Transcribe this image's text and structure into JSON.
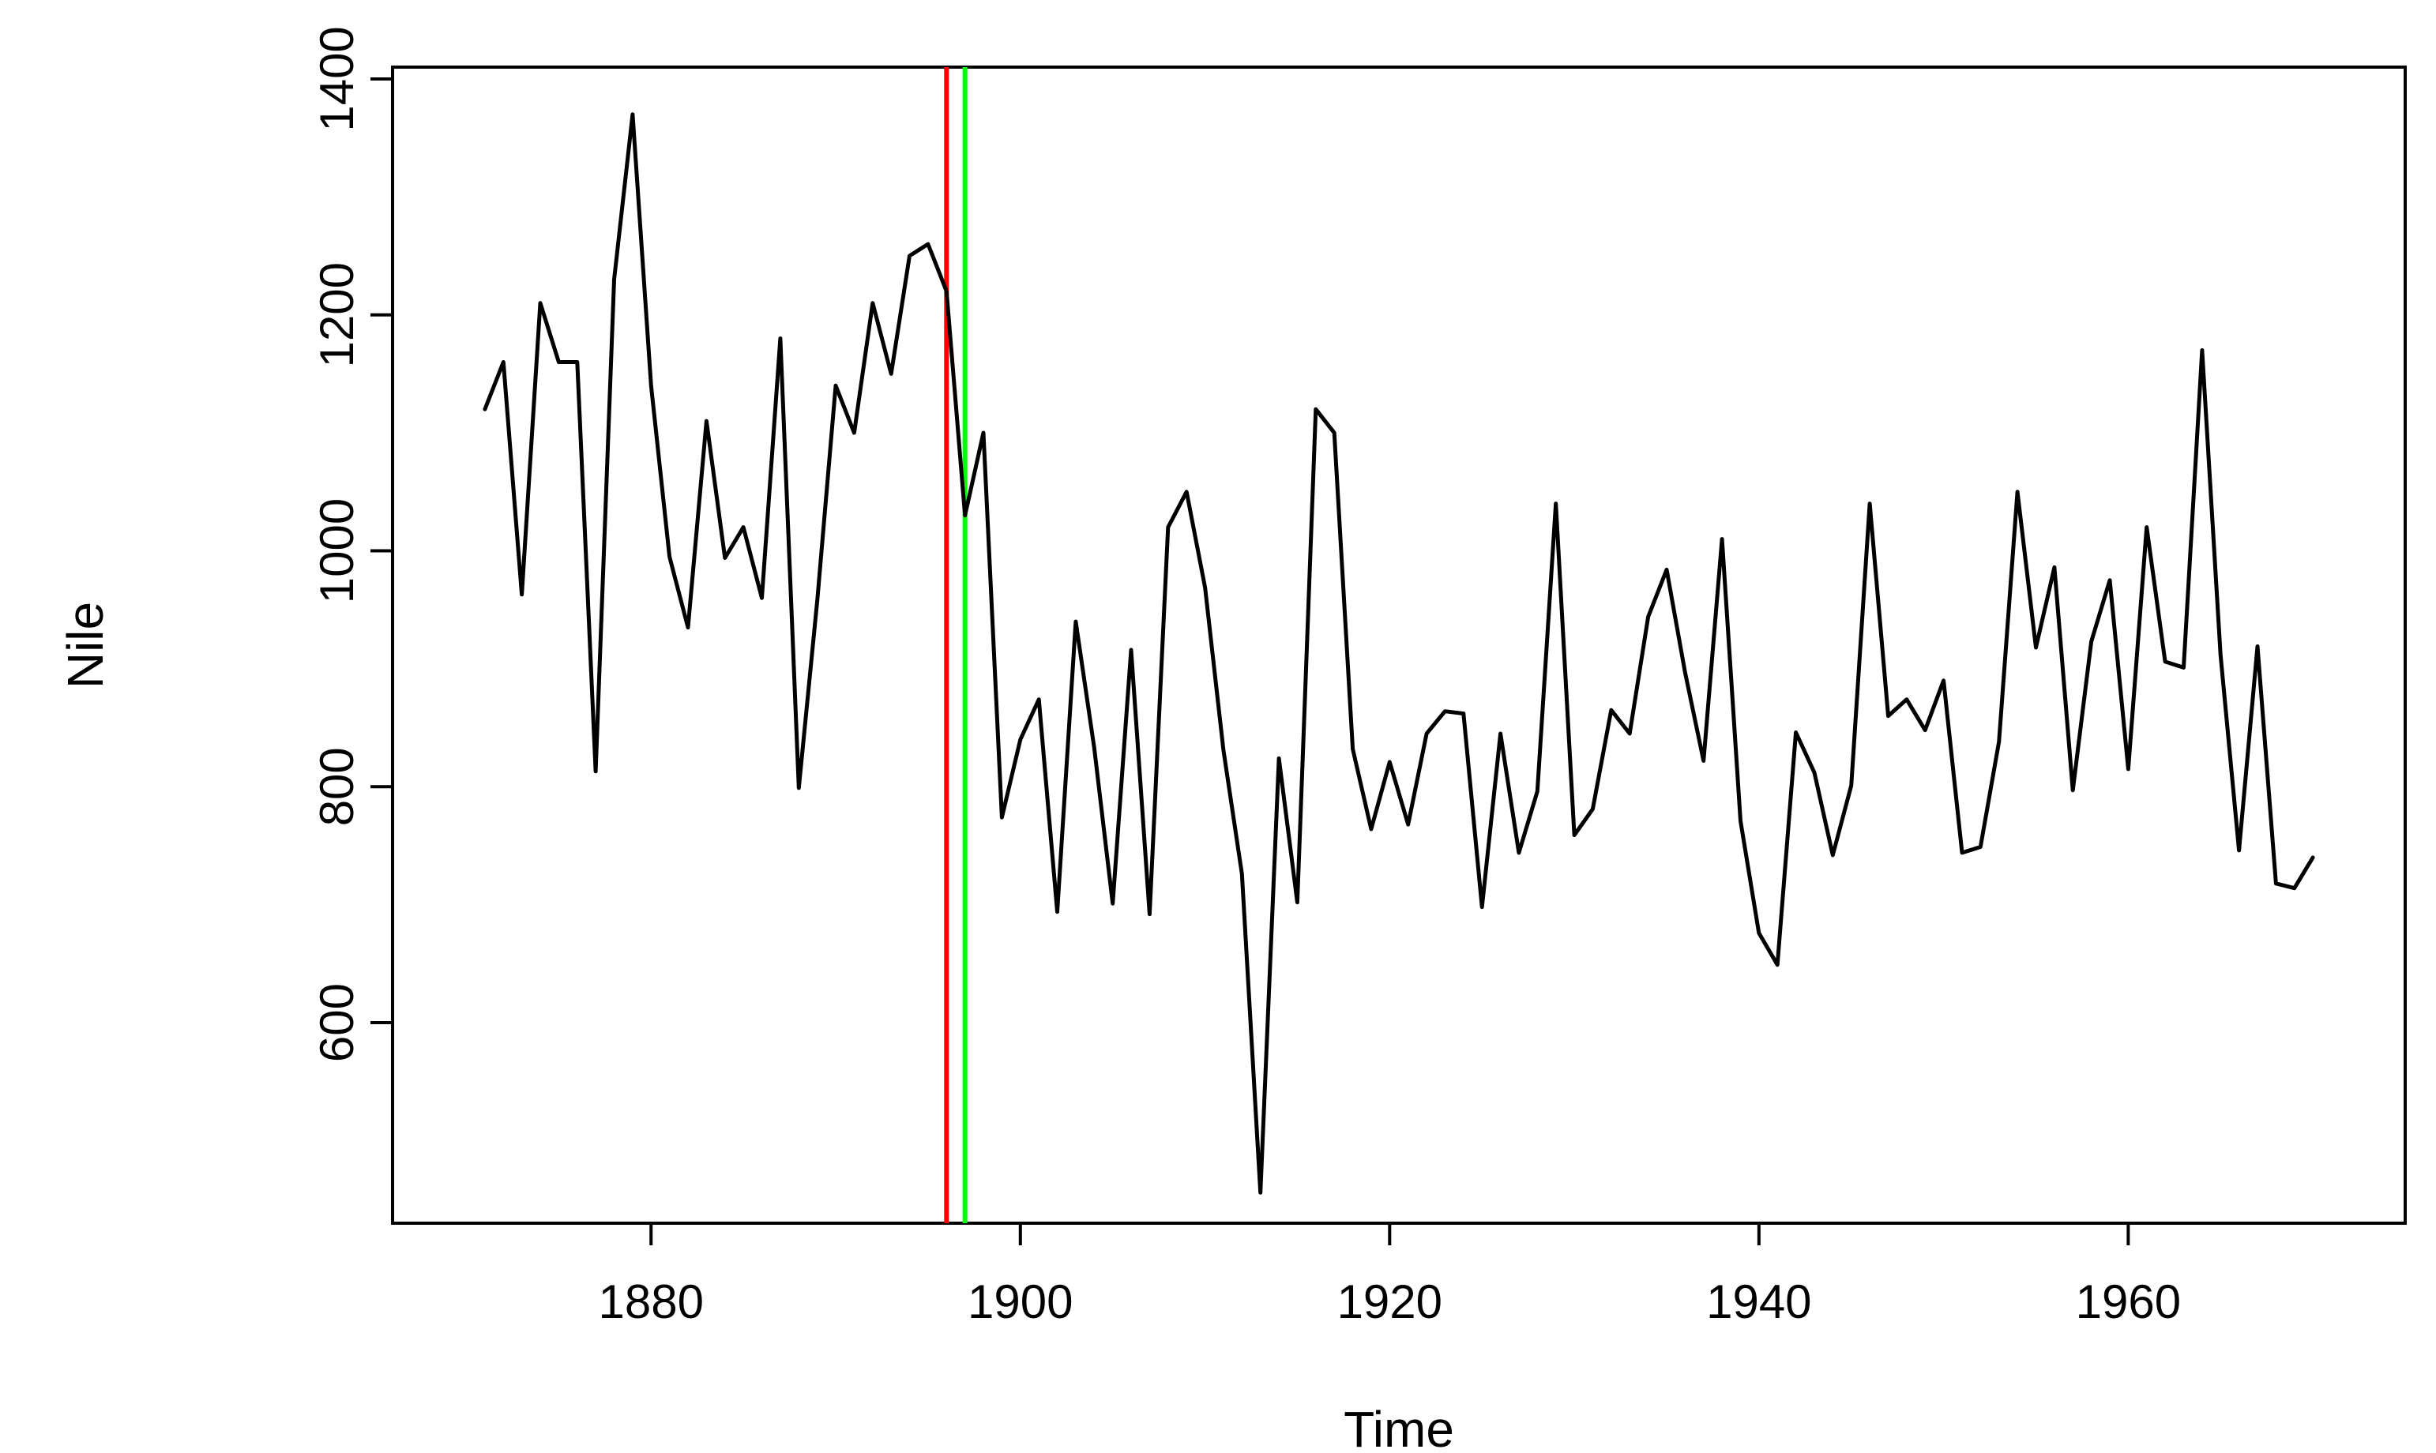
{
  "chart_data": {
    "type": "line",
    "title": "",
    "xlabel": "Time",
    "ylabel": "Nile",
    "xlim": [
      1866,
      1975
    ],
    "ylim": [
      430,
      1410
    ],
    "x_ticks": [
      1880,
      1900,
      1920,
      1940,
      1960
    ],
    "y_ticks": [
      600,
      800,
      1000,
      1200,
      1400
    ],
    "grid": false,
    "legend": "none",
    "series": [
      {
        "color": "#000000",
        "x": [
          1871,
          1872,
          1873,
          1874,
          1875,
          1876,
          1877,
          1878,
          1879,
          1880,
          1881,
          1882,
          1883,
          1884,
          1885,
          1886,
          1887,
          1888,
          1889,
          1890,
          1891,
          1892,
          1893,
          1894,
          1895,
          1896,
          1897,
          1898,
          1899,
          1900,
          1901,
          1902,
          1903,
          1904,
          1905,
          1906,
          1907,
          1908,
          1909,
          1910,
          1911,
          1912,
          1913,
          1914,
          1915,
          1916,
          1917,
          1918,
          1919,
          1920,
          1921,
          1922,
          1923,
          1924,
          1925,
          1926,
          1927,
          1928,
          1929,
          1930,
          1931,
          1932,
          1933,
          1934,
          1935,
          1936,
          1937,
          1938,
          1939,
          1940,
          1941,
          1942,
          1943,
          1944,
          1945,
          1946,
          1947,
          1948,
          1949,
          1950,
          1951,
          1952,
          1953,
          1954,
          1955,
          1956,
          1957,
          1958,
          1959,
          1960,
          1961,
          1962,
          1963,
          1964,
          1965,
          1966,
          1967,
          1968,
          1969,
          1970
        ],
        "values": [
          1120,
          1160,
          963,
          1210,
          1160,
          1160,
          813,
          1230,
          1370,
          1140,
          995,
          935,
          1110,
          994,
          1020,
          960,
          1180,
          799,
          958,
          1140,
          1100,
          1210,
          1150,
          1250,
          1260,
          1220,
          1030,
          1100,
          774,
          840,
          874,
          694,
          940,
          833,
          701,
          916,
          692,
          1020,
          1050,
          969,
          831,
          726,
          456,
          824,
          702,
          1120,
          1100,
          832,
          764,
          821,
          768,
          845,
          864,
          862,
          698,
          845,
          744,
          796,
          1040,
          759,
          781,
          865,
          845,
          944,
          984,
          897,
          822,
          1010,
          771,
          676,
          649,
          846,
          812,
          742,
          801,
          1040,
          860,
          874,
          848,
          890,
          744,
          749,
          838,
          1050,
          918,
          986,
          797,
          923,
          975,
          815,
          1020,
          906,
          901,
          1170,
          912,
          746,
          919,
          718,
          714,
          740
        ]
      }
    ],
    "vlines": [
      {
        "x": 1896,
        "color": "#ff0000"
      },
      {
        "x": 1897,
        "color": "#00ff00"
      }
    ]
  }
}
